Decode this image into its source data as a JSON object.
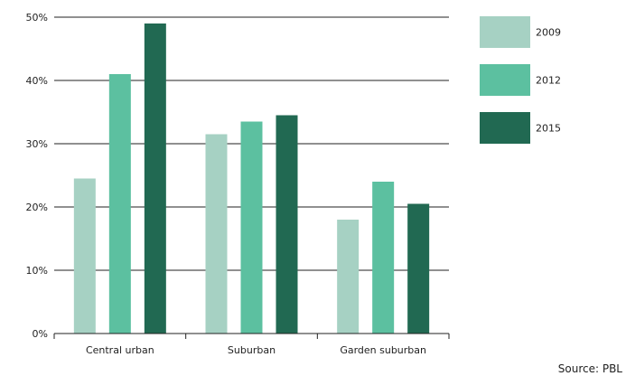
{
  "chart_data": {
    "type": "bar",
    "title": "",
    "xlabel": "",
    "ylabel": "",
    "categories": [
      "Central urban",
      "Suburban",
      "Garden suburban"
    ],
    "series": [
      {
        "name": "2009",
        "values": [
          24.5,
          31.5,
          18
        ],
        "color": "#a6d1c3"
      },
      {
        "name": "2012",
        "values": [
          41,
          33.5,
          24
        ],
        "color": "#5cc0a0"
      },
      {
        "name": "2015",
        "values": [
          49,
          34.5,
          20.5
        ],
        "color": "#216952"
      }
    ],
    "ylim": [
      0,
      50
    ],
    "yticks": [
      0,
      10,
      20,
      30,
      40,
      50
    ],
    "ytick_labels": [
      "0%",
      "10%",
      "20%",
      "30%",
      "40%",
      "50%"
    ],
    "grid": true,
    "legend_position": "top-right",
    "source": "Source: PBL"
  },
  "colors": {
    "axis": "#222222",
    "grid": "#222222",
    "background": "#ffffff"
  }
}
